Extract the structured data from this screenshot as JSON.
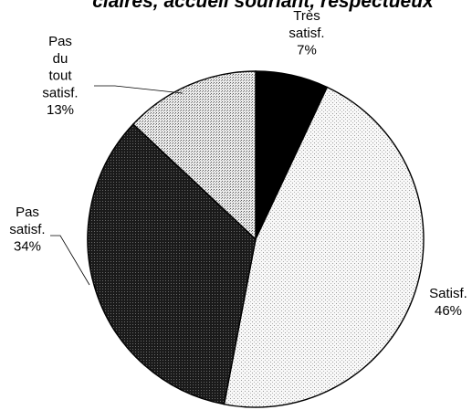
{
  "chart_data": {
    "type": "pie",
    "title": "claires, accueil souriant, respectueux",
    "slices": [
      {
        "label_lines": [
          "Très",
          "satisf.",
          "7%"
        ],
        "value": 7,
        "pattern": "solid-black"
      },
      {
        "label_lines": [
          "Satisf.",
          "46%"
        ],
        "value": 46,
        "pattern": "light-dotted"
      },
      {
        "label_lines": [
          "Pas",
          "satisf.",
          "34%"
        ],
        "value": 34,
        "pattern": "dark-dotted"
      },
      {
        "label_lines": [
          "Pas",
          "du",
          "tout",
          "satisf.",
          "13%"
        ],
        "value": 13,
        "pattern": "grey-dotted"
      }
    ],
    "start": "12 o'clock",
    "direction": "clockwise",
    "legend": "none"
  }
}
